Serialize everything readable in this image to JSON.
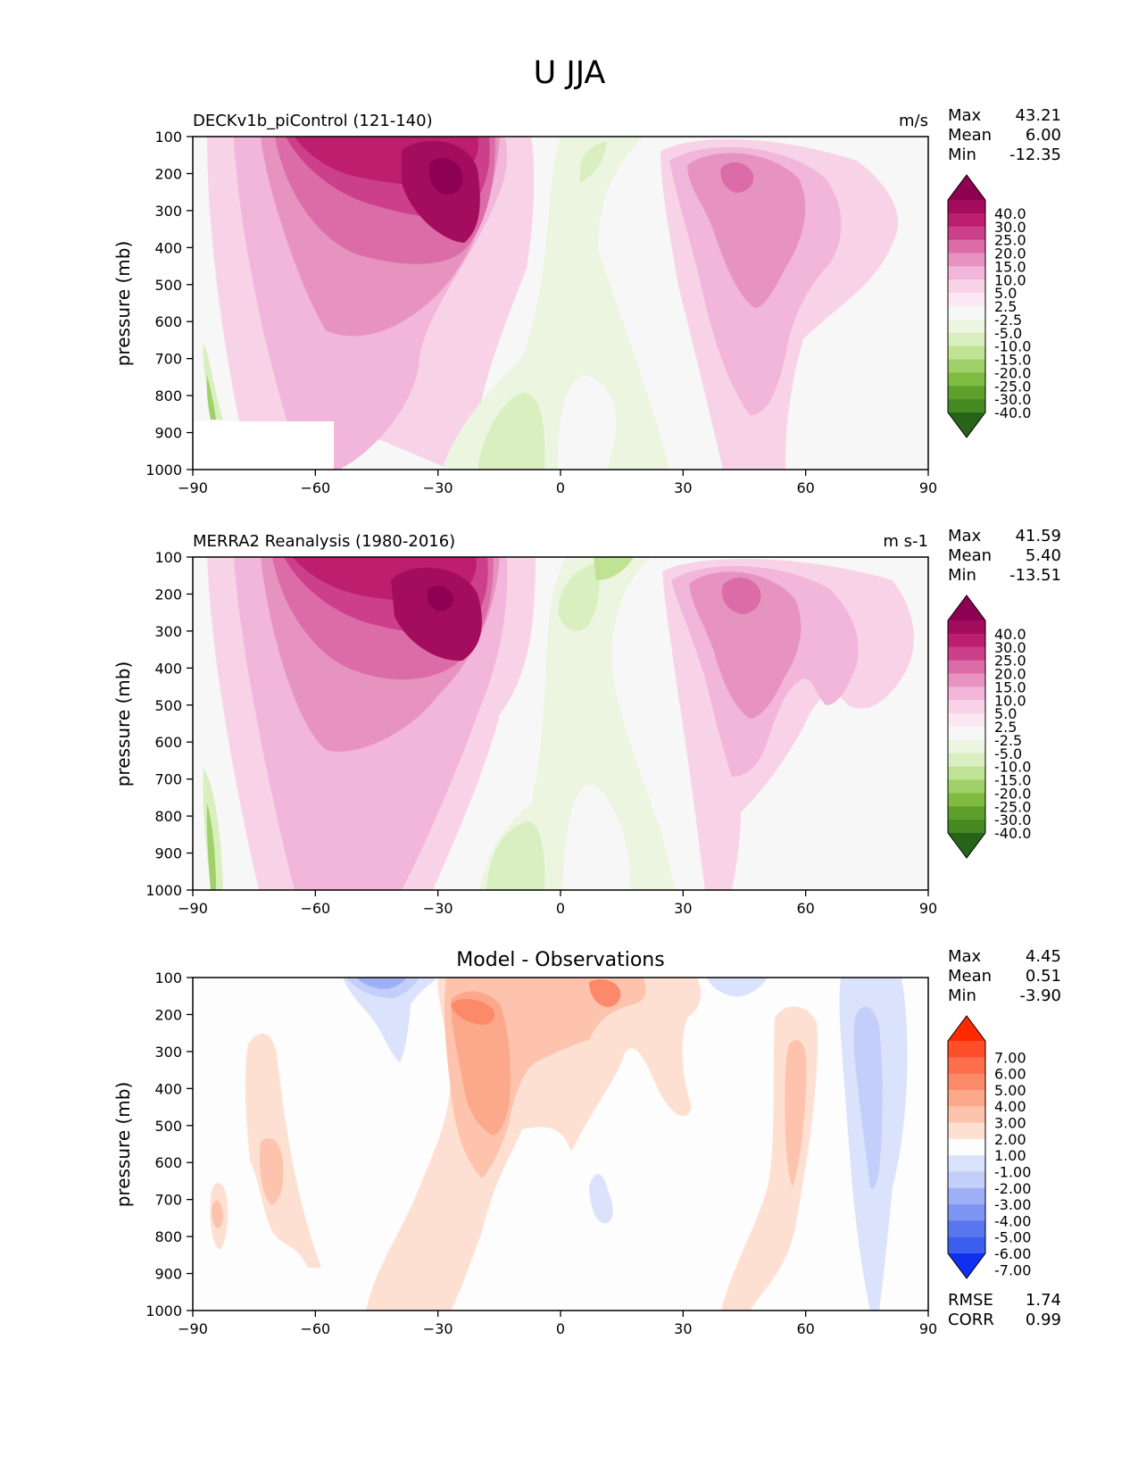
{
  "figure": {
    "title": "U JJA"
  },
  "chart_data": [
    {
      "type": "contour",
      "panel": "model",
      "title": "DECKv1b_piControl (121-140)",
      "units": "m/s",
      "ylabel": "pressure (mb)",
      "xlabel": "",
      "xlim": [
        -90,
        90
      ],
      "ylim": [
        1000,
        100
      ],
      "xticks": [
        "−90",
        "−60",
        "−30",
        "0",
        "30",
        "60",
        "90"
      ],
      "yticks": [
        "100",
        "200",
        "300",
        "400",
        "500",
        "600",
        "700",
        "800",
        "900",
        "1000"
      ],
      "stats": {
        "Max": "43.21",
        "Mean": "6.00",
        "Min": "-12.35"
      },
      "colorbar": {
        "labels": [
          "40.0",
          "30.0",
          "25.0",
          "20.0",
          "15.0",
          "10.0",
          "5.0",
          "2.5",
          "-2.5",
          "-5.0",
          "-10.0",
          "-15.0",
          "-20.0",
          "-25.0",
          "-30.0",
          "-40.0"
        ],
        "colors": [
          "#8e0152",
          "#a40c5e",
          "#bd1e6e",
          "#cc3f8a",
          "#db6ca8",
          "#e793c0",
          "#f1b6da",
          "#f8d3e8",
          "#fbe8f2",
          "#f7f7f7",
          "#ebf5df",
          "#d9efc0",
          "#bfe295",
          "#a0d06a",
          "#7fbc41",
          "#5fa02c",
          "#468a22",
          "#276419"
        ]
      },
      "features": [
        {
          "center": [
            -30,
            200
          ],
          "value": 43.21
        },
        {
          "center": [
            -45,
            150
          ],
          "value": 30
        },
        {
          "center": [
            45,
            200
          ],
          "value": 20
        },
        {
          "center": [
            -10,
            850
          ],
          "value": -10
        }
      ]
    },
    {
      "type": "contour",
      "panel": "observations",
      "title": "MERRA2 Reanalysis (1980-2016)",
      "units": "m s-1",
      "ylabel": "pressure (mb)",
      "xlabel": "",
      "xlim": [
        -90,
        90
      ],
      "ylim": [
        1000,
        100
      ],
      "xticks": [
        "−90",
        "−60",
        "−30",
        "0",
        "30",
        "60",
        "90"
      ],
      "yticks": [
        "100",
        "200",
        "300",
        "400",
        "500",
        "600",
        "700",
        "800",
        "900",
        "1000"
      ],
      "stats": {
        "Max": "41.59",
        "Mean": "5.40",
        "Min": "-13.51"
      },
      "colorbar": {
        "labels": [
          "40.0",
          "30.0",
          "25.0",
          "20.0",
          "15.0",
          "10.0",
          "5.0",
          "2.5",
          "-2.5",
          "-5.0",
          "-10.0",
          "-15.0",
          "-20.0",
          "-25.0",
          "-30.0",
          "-40.0"
        ],
        "colors": [
          "#8e0152",
          "#a40c5e",
          "#bd1e6e",
          "#cc3f8a",
          "#db6ca8",
          "#e793c0",
          "#f1b6da",
          "#f8d3e8",
          "#fbe8f2",
          "#f7f7f7",
          "#ebf5df",
          "#d9efc0",
          "#bfe295",
          "#a0d06a",
          "#7fbc41",
          "#5fa02c",
          "#468a22",
          "#276419"
        ]
      },
      "features": [
        {
          "center": [
            -32,
            200
          ],
          "value": 41.59
        },
        {
          "center": [
            -45,
            150
          ],
          "value": 30
        },
        {
          "center": [
            45,
            200
          ],
          "value": 20
        },
        {
          "center": [
            -10,
            850
          ],
          "value": -10
        }
      ]
    },
    {
      "type": "contour",
      "panel": "difference",
      "title": "Model - Observations",
      "units": "",
      "ylabel": "pressure (mb)",
      "xlabel": "",
      "xlim": [
        -90,
        90
      ],
      "ylim": [
        1000,
        100
      ],
      "xticks": [
        "−90",
        "−60",
        "−30",
        "0",
        "30",
        "60",
        "90"
      ],
      "yticks": [
        "100",
        "200",
        "300",
        "400",
        "500",
        "600",
        "700",
        "800",
        "900",
        "1000"
      ],
      "stats": {
        "Max": "4.45",
        "Mean": "0.51",
        "Min": "-3.90"
      },
      "extra_stats": {
        "RMSE": "1.74",
        "CORR": "0.99"
      },
      "colorbar": {
        "labels": [
          "7.00",
          "6.00",
          "5.00",
          "4.00",
          "3.00",
          "2.00",
          "1.00",
          "-1.00",
          "-2.00",
          "-3.00",
          "-4.00",
          "-5.00",
          "-6.00",
          "-7.00"
        ],
        "colors": [
          "#ff2a00",
          "#ff4e2a",
          "#ff6e4a",
          "#fc8a6a",
          "#fca88a",
          "#fdc3ad",
          "#fee0d3",
          "#fdfdfd",
          "#dbe2fb",
          "#c3cefa",
          "#9fb0f6",
          "#7f95f3",
          "#5a76ef",
          "#3a5eee",
          "#1030f0"
        ]
      },
      "features": [
        {
          "center": [
            -20,
            350
          ],
          "value": 4
        },
        {
          "center": [
            8,
            120
          ],
          "value": 4.45
        },
        {
          "center": [
            77,
            450
          ],
          "value": -3
        },
        {
          "center": [
            -40,
            130
          ],
          "value": -3.9
        }
      ]
    }
  ]
}
